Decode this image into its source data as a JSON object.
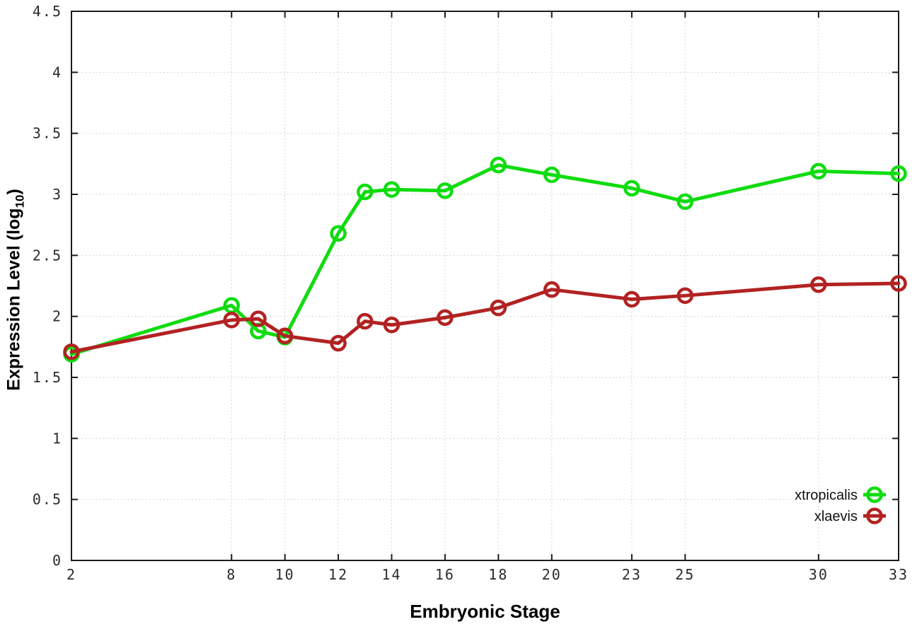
{
  "chart_data": {
    "type": "line",
    "title": "",
    "xlabel": "Embryonic Stage",
    "ylabel": "Expression Level (log10)",
    "ylabel_parts": {
      "prefix": "Expression Level (log",
      "sub": "10",
      "suffix": ")"
    },
    "xlim": [
      2,
      33
    ],
    "ylim": [
      0,
      4.5
    ],
    "grid": true,
    "legend_position": "bottom-right",
    "x_ticks": {
      "values": [
        2,
        8,
        10,
        12,
        14,
        16,
        18,
        20,
        23,
        25,
        30,
        33
      ],
      "labels": [
        "2",
        "8",
        "10",
        "12",
        "14",
        "16",
        "18",
        "20",
        "23",
        "25",
        "30",
        "33"
      ]
    },
    "y_ticks": {
      "values": [
        0,
        0.5,
        1,
        1.5,
        2,
        2.5,
        3,
        3.5,
        4,
        4.5
      ],
      "labels": [
        "0",
        "0.5",
        "1",
        "1.5",
        "2",
        "2.5",
        "3",
        "3.5",
        "4",
        "4.5"
      ]
    },
    "x": [
      2,
      8,
      9,
      10,
      12,
      13,
      14,
      16,
      18,
      20,
      23,
      25,
      30,
      33
    ],
    "series": [
      {
        "name": "xtropicalis",
        "color": "#0fdc0f",
        "marker": "open-circle",
        "values": [
          1.69,
          2.09,
          1.88,
          1.83,
          2.68,
          3.02,
          3.04,
          3.03,
          3.24,
          3.16,
          3.05,
          2.94,
          3.19,
          3.17
        ]
      },
      {
        "name": "xlaevis",
        "color": "#b22222",
        "marker": "open-circle",
        "values": [
          1.71,
          1.97,
          1.98,
          1.84,
          1.78,
          1.96,
          1.93,
          1.99,
          2.07,
          2.22,
          2.14,
          2.17,
          2.26,
          2.27
        ]
      }
    ]
  },
  "colors": {
    "background": "#ffffff",
    "grid": "#c9c9c9",
    "axis": "#1c1c1c",
    "tick_label": "#2b2b2b",
    "label": "#000000"
  }
}
